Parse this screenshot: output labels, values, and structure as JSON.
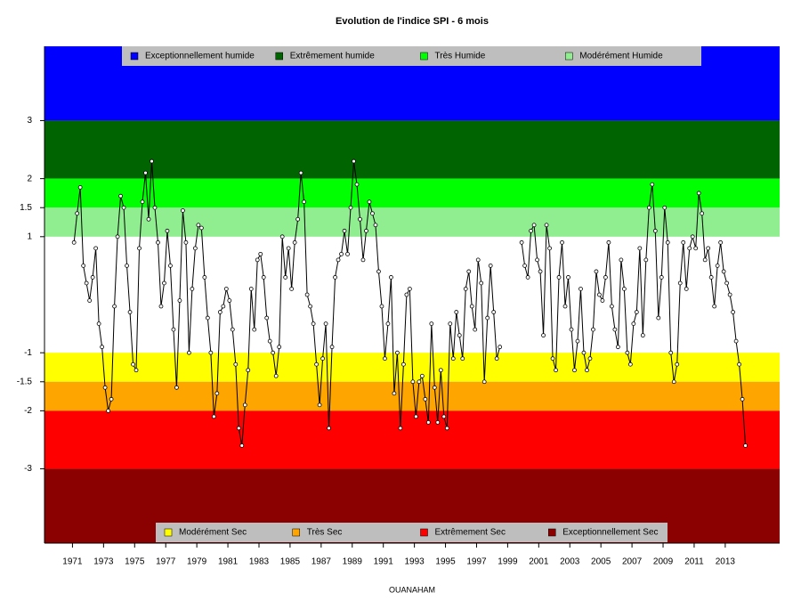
{
  "chart_data": {
    "type": "line",
    "title": "Evolution de l'indice SPI - 6 mois",
    "x_label": "OUANAHAM",
    "xlim": [
      1969.2,
      2016.5
    ],
    "xticks": [
      1971,
      1973,
      1975,
      1977,
      1979,
      1981,
      1983,
      1985,
      1987,
      1989,
      1991,
      1993,
      1995,
      1997,
      1999,
      2001,
      2003,
      2005,
      2007,
      2009,
      2011,
      2013
    ],
    "ylim": [
      -4.28,
      4.28
    ],
    "yticks": [
      3,
      2,
      1.5,
      1,
      -1,
      -1.5,
      -2,
      -3
    ],
    "bands": [
      {
        "name": "Exceptionnellement humide",
        "color": "#0000ff",
        "range": [
          3,
          4.28
        ],
        "legend": "top"
      },
      {
        "name": "Extrêmement humide",
        "color": "#006400",
        "range": [
          2,
          3
        ],
        "legend": "top"
      },
      {
        "name": "Très Humide",
        "color": "#00ff00",
        "range": [
          1.5,
          2
        ],
        "legend": "top"
      },
      {
        "name": "Modérément Humide",
        "color": "#90ee90",
        "range": [
          1,
          1.5
        ],
        "legend": "top"
      },
      {
        "name": "Modérément Sec",
        "color": "#ffff00",
        "range": [
          -1.5,
          -1
        ],
        "legend": "bottom"
      },
      {
        "name": "Très Sec",
        "color": "#ffa500",
        "range": [
          -2,
          -1.5
        ],
        "legend": "bottom"
      },
      {
        "name": "Extrêmement Sec",
        "color": "#ff0000",
        "range": [
          -3,
          -2
        ],
        "legend": "bottom"
      },
      {
        "name": "Exceptionnellement Sec",
        "color": "#8b0000",
        "range": [
          -4.28,
          -3
        ],
        "legend": "bottom"
      }
    ],
    "color": "#000000",
    "x": [
      1971.1,
      1971.3,
      1971.5,
      1971.7,
      1971.9,
      1972.1,
      1972.3,
      1972.5,
      1972.7,
      1972.9,
      1973.1,
      1973.3,
      1973.5,
      1973.7,
      1973.9,
      1974.1,
      1974.3,
      1974.5,
      1974.7,
      1974.9,
      1975.1,
      1975.3,
      1975.5,
      1975.7,
      1975.9,
      1976.1,
      1976.3,
      1976.5,
      1976.7,
      1976.9,
      1977.1,
      1977.3,
      1977.5,
      1977.7,
      1977.9,
      1978.1,
      1978.3,
      1978.5,
      1978.7,
      1978.9,
      1979.1,
      1979.3,
      1979.5,
      1979.7,
      1979.9,
      1980.1,
      1980.3,
      1980.5,
      1980.7,
      1980.9,
      1981.1,
      1981.3,
      1981.5,
      1981.7,
      1981.9,
      1982.1,
      1982.3,
      1982.5,
      1982.7,
      1982.9,
      1983.1,
      1983.3,
      1983.5,
      1983.7,
      1983.9,
      1984.1,
      1984.3,
      1984.5,
      1984.7,
      1984.9,
      1985.1,
      1985.3,
      1985.5,
      1985.7,
      1985.9,
      1986.1,
      1986.3,
      1986.5,
      1986.7,
      1986.9,
      1987.1,
      1987.3,
      1987.5,
      1987.7,
      1987.9,
      1988.1,
      1988.3,
      1988.5,
      1988.7,
      1988.9,
      1989.1,
      1989.3,
      1989.5,
      1989.7,
      1989.9,
      1990.1,
      1990.3,
      1990.5,
      1990.7,
      1990.9,
      1991.1,
      1991.3,
      1991.5,
      1991.7,
      1991.9,
      1992.1,
      1992.3,
      1992.5,
      1992.7,
      1992.9,
      1993.1,
      1993.3,
      1993.5,
      1993.7,
      1993.9,
      1994.1,
      1994.3,
      1994.5,
      1994.7,
      1994.9,
      1995.1,
      1995.3,
      1995.5,
      1995.7,
      1995.9,
      1996.1,
      1996.3,
      1996.5,
      1996.7,
      1996.9,
      1997.1,
      1997.3,
      1997.5,
      1997.7,
      1997.9,
      1998.1,
      1998.3,
      1998.5,
      1998.7,
      1998.9,
      1999.1,
      1999.3,
      1999.5,
      1999.7,
      1999.9,
      2000.1,
      2000.3,
      2000.5,
      2000.7,
      2000.9,
      2001.1,
      2001.3,
      2001.5,
      2001.7,
      2001.9,
      2002.1,
      2002.3,
      2002.5,
      2002.7,
      2002.9,
      2003.1,
      2003.3,
      2003.5,
      2003.7,
      2003.9,
      2004.1,
      2004.3,
      2004.5,
      2004.7,
      2004.9,
      2005.1,
      2005.3,
      2005.5,
      2005.7,
      2005.9,
      2006.1,
      2006.3,
      2006.5,
      2006.7,
      2006.9,
      2007.1,
      2007.3,
      2007.5,
      2007.7,
      2007.9,
      2008.1,
      2008.3,
      2008.5,
      2008.7,
      2008.9,
      2009.1,
      2009.3,
      2009.5,
      2009.7,
      2009.9,
      2010.1,
      2010.3,
      2010.5,
      2010.7,
      2010.9,
      2011.1,
      2011.3,
      2011.5,
      2011.7,
      2011.9,
      2012.1,
      2012.3,
      2012.5,
      2012.7,
      2012.9,
      2013.1,
      2013.3,
      2013.5,
      2013.7,
      2013.9,
      2014.1,
      2014.3
    ],
    "values": [
      0.9,
      1.4,
      1.85,
      0.5,
      0.2,
      -0.1,
      0.3,
      0.8,
      -0.5,
      -0.9,
      -1.6,
      -2.0,
      -1.8,
      -0.2,
      1.0,
      1.7,
      1.5,
      0.5,
      -0.3,
      -1.2,
      -1.3,
      0.8,
      1.6,
      2.1,
      1.3,
      2.3,
      1.5,
      0.9,
      -0.2,
      0.2,
      1.1,
      0.5,
      -0.6,
      -1.6,
      -0.1,
      1.45,
      0.9,
      -1.0,
      0.1,
      0.8,
      1.2,
      1.15,
      0.3,
      -0.4,
      -1.0,
      -2.1,
      -1.7,
      -0.3,
      -0.2,
      0.1,
      -0.1,
      -0.6,
      -1.2,
      -2.3,
      -2.6,
      -1.9,
      -1.3,
      0.1,
      -0.6,
      0.6,
      0.7,
      0.3,
      -0.4,
      -0.8,
      -1.0,
      -1.4,
      -0.9,
      1.0,
      0.3,
      0.8,
      0.1,
      0.9,
      1.3,
      2.1,
      1.6,
      0.0,
      -0.2,
      -0.5,
      -1.2,
      -1.9,
      -1.1,
      -0.5,
      -2.3,
      -0.9,
      0.3,
      0.6,
      0.7,
      1.1,
      0.7,
      1.5,
      2.3,
      1.9,
      1.3,
      0.6,
      1.1,
      1.6,
      1.4,
      1.2,
      0.4,
      -0.2,
      -1.1,
      -0.5,
      0.3,
      -1.7,
      -1.0,
      -2.3,
      -1.2,
      0.0,
      0.1,
      -1.5,
      -2.1,
      -1.5,
      -1.4,
      -1.8,
      -2.2,
      -0.5,
      -1.6,
      -2.2,
      -1.3,
      -2.1,
      -2.3,
      -0.5,
      -1.1,
      -0.3,
      -0.7,
      -1.1,
      0.1,
      0.4,
      -0.2,
      -0.6,
      0.6,
      0.2,
      -1.5,
      -0.4,
      0.5,
      -0.3,
      -1.1,
      -0.9,
      null,
      null,
      null,
      null,
      null,
      null,
      0.9,
      0.5,
      0.3,
      1.1,
      1.2,
      0.6,
      0.4,
      -0.7,
      1.2,
      0.8,
      -1.1,
      -1.3,
      0.3,
      0.9,
      -0.2,
      0.3,
      -0.6,
      -1.3,
      -0.8,
      0.1,
      -1.0,
      -1.3,
      -1.1,
      -0.6,
      0.4,
      0.0,
      -0.1,
      0.3,
      0.9,
      -0.2,
      -0.6,
      -0.9,
      0.6,
      0.1,
      -1.0,
      -1.2,
      -0.5,
      -0.3,
      0.8,
      -0.7,
      0.6,
      1.5,
      1.9,
      1.1,
      -0.4,
      0.3,
      1.5,
      0.9,
      -1.0,
      -1.5,
      -1.2,
      0.2,
      0.9,
      0.1,
      0.8,
      1.0,
      0.8,
      1.75,
      1.4,
      0.6,
      0.8,
      0.3,
      -0.2,
      0.5,
      0.9,
      0.4,
      0.2,
      0.0,
      -0.3,
      -0.8,
      -1.2,
      -1.8,
      -2.6
    ]
  }
}
